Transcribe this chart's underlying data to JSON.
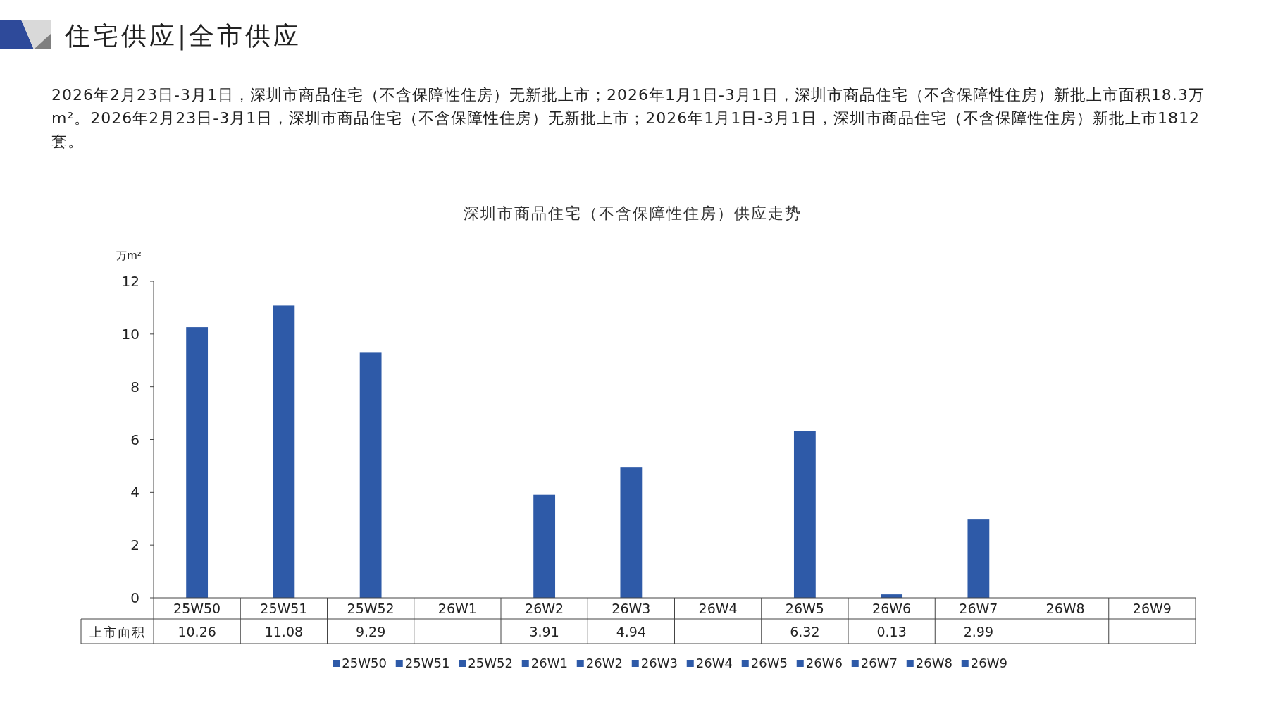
{
  "chart_data": {
    "type": "bar",
    "title": "住宅供应|全市供应",
    "subtitle": "2026年2月23日-3月1日，深圳市商品住宅（不含保障性住房）无新批上市；2026年1月1日-3月1日，深圳市商品住宅（不含保障性住房）新批上市面积18.3万m²。2026年2月23日-3月1日，深圳市商品住宅（不含保障性住房）无新批上市；2026年1月1日-3月1日，深圳市商品住宅（不含保障性住房）新批上市1812套。",
    "annotations": [
      "深圳市商品住宅（不含保障性住房）供应走势"
    ],
    "ylabel": "万m²",
    "categories": [
      "25W50",
      "25W51",
      "25W52",
      "26W1",
      "26W2",
      "26W3",
      "26W4",
      "26W5",
      "26W6",
      "26W7",
      "26W8",
      "26W9"
    ],
    "series": [
      {
        "name": "上市面积",
        "colors": [
          "#2e5aa8",
          "#2e5aa8",
          "#2e5aa8",
          "#2e5aa8",
          "#2e5aa8",
          "#2e5aa8",
          "#2e5aa8",
          "#2e5aa8",
          "#2e5aa8",
          "#2e5aa8",
          "#2e5aa8",
          "#2e5aa8"
        ],
        "values": [
          10.26,
          11.08,
          9.29,
          null,
          3.91,
          4.94,
          null,
          6.32,
          0.13,
          2.99,
          null,
          null
        ]
      }
    ],
    "ylim": [
      0,
      12
    ],
    "yticks": [
      0,
      2,
      4,
      6,
      8,
      10,
      12
    ],
    "data_labels": true,
    "legend": "bottom",
    "grid": false
  }
}
